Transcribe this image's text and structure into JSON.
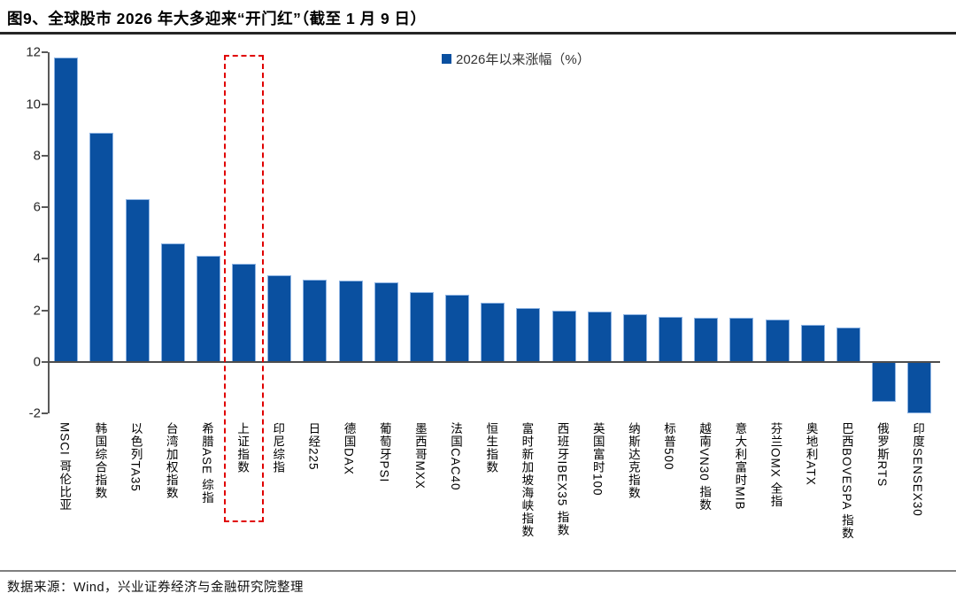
{
  "header": {
    "title": "图9、全球股市 2026 年大多迎来“开门红”（截至 1 月 9 日）"
  },
  "legend": {
    "label": "2026年以来涨幅（%）"
  },
  "footer": {
    "source": "数据来源：Wind，兴业证券经济与金融研究院整理"
  },
  "colors": {
    "bar": "#0A50A0",
    "bar_edge": "#8EB4E3",
    "highlight_red": "#E00000",
    "axis": "#595959"
  },
  "chart_data": {
    "type": "bar",
    "title": "图9、全球股市 2026 年大多迎来“开门红”（截至 1 月 9 日）",
    "legend_entries": [
      "2026年以来涨幅（%）"
    ],
    "legend_position": "top-center",
    "grid": false,
    "ylim": [
      -2,
      12
    ],
    "yticks": [
      12,
      10,
      8,
      6,
      4,
      2,
      0,
      -2
    ],
    "categories": [
      "MSCI 哥伦比亚",
      "韩国综合指数",
      "以色列TA35",
      "台湾加权指数",
      "希腊ASE 综指",
      "上证指数",
      "印尼综指",
      "日经225",
      "德国DAX",
      "葡萄牙PSI",
      "墨西哥MXX",
      "法国CAC40",
      "恒生指数",
      "富时新加坡海峡指数",
      "西班牙IBEX35 指数",
      "英国富时100",
      "纳斯达克指数",
      "标普500",
      "越南VN30 指数",
      "意大利富时MIB",
      "芬兰OMX 全指",
      "奥地利ATX",
      "巴西BOVESPA 指数",
      "俄罗斯RTS",
      "印度SENSEX30"
    ],
    "values": [
      11.8,
      8.9,
      6.3,
      4.6,
      4.1,
      3.8,
      3.35,
      3.2,
      3.15,
      3.1,
      2.7,
      2.6,
      2.3,
      2.1,
      2.0,
      1.95,
      1.85,
      1.75,
      1.7,
      1.7,
      1.65,
      1.45,
      1.35,
      -1.55,
      -2.0
    ],
    "highlight": {
      "index": 5,
      "category": "上证指数",
      "style": "red dashed box"
    }
  }
}
